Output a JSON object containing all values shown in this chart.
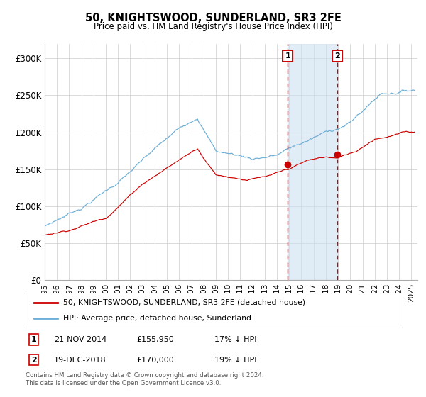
{
  "title": "50, KNIGHTSWOOD, SUNDERLAND, SR3 2FE",
  "subtitle": "Price paid vs. HM Land Registry's House Price Index (HPI)",
  "hpi_color": "#6baed6",
  "price_color": "#cc0000",
  "marker_color": "#cc0000",
  "background_color": "#ffffff",
  "grid_color": "#cccccc",
  "shaded_region_color": "#cce0f0",
  "dashed_line_color": "#cc0000",
  "event1_date_num": 2014.896,
  "event1_price": 155950,
  "event2_date_num": 2018.963,
  "event2_price": 170000,
  "ylim": [
    0,
    320000
  ],
  "xlim_start": 1995.0,
  "xlim_end": 2025.5,
  "yticks": [
    0,
    50000,
    100000,
    150000,
    200000,
    250000,
    300000
  ],
  "ytick_labels": [
    "£0",
    "£50K",
    "£100K",
    "£150K",
    "£200K",
    "£250K",
    "£300K"
  ],
  "xticks": [
    1995,
    1996,
    1997,
    1998,
    1999,
    2000,
    2001,
    2002,
    2003,
    2004,
    2005,
    2006,
    2007,
    2008,
    2009,
    2010,
    2011,
    2012,
    2013,
    2014,
    2015,
    2016,
    2017,
    2018,
    2019,
    2020,
    2021,
    2022,
    2023,
    2024,
    2025
  ],
  "legend_line1": "50, KNIGHTSWOOD, SUNDERLAND, SR3 2FE (detached house)",
  "legend_line2": "HPI: Average price, detached house, Sunderland",
  "footer": "Contains HM Land Registry data © Crown copyright and database right 2024.\nThis data is licensed under the Open Government Licence v3.0."
}
